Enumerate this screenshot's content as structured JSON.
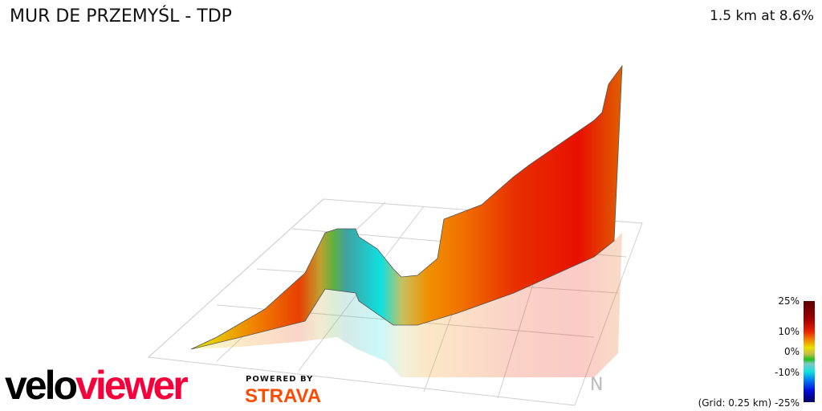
{
  "header": {
    "title": "MUR DE PRZEMYŚL - TDP",
    "summary": "1.5 km at 8.6%"
  },
  "legend": {
    "ticks": [
      "25%",
      "10%",
      "0%",
      "-10%",
      "-25%"
    ],
    "grid_note": "(Grid: 0.25 km)",
    "colors": [
      "#5a0000",
      "#e82000",
      "#e8e000",
      "#20c020",
      "#10e0e0",
      "#0010e0",
      "#000060"
    ]
  },
  "branding": {
    "velo": "velo",
    "viewer": "viewer",
    "powered_by": "POWERED BY",
    "strava": "STRAVA",
    "accent": "#f5003a",
    "strava_color": "#fc4c02"
  },
  "north_indicator": "N"
}
